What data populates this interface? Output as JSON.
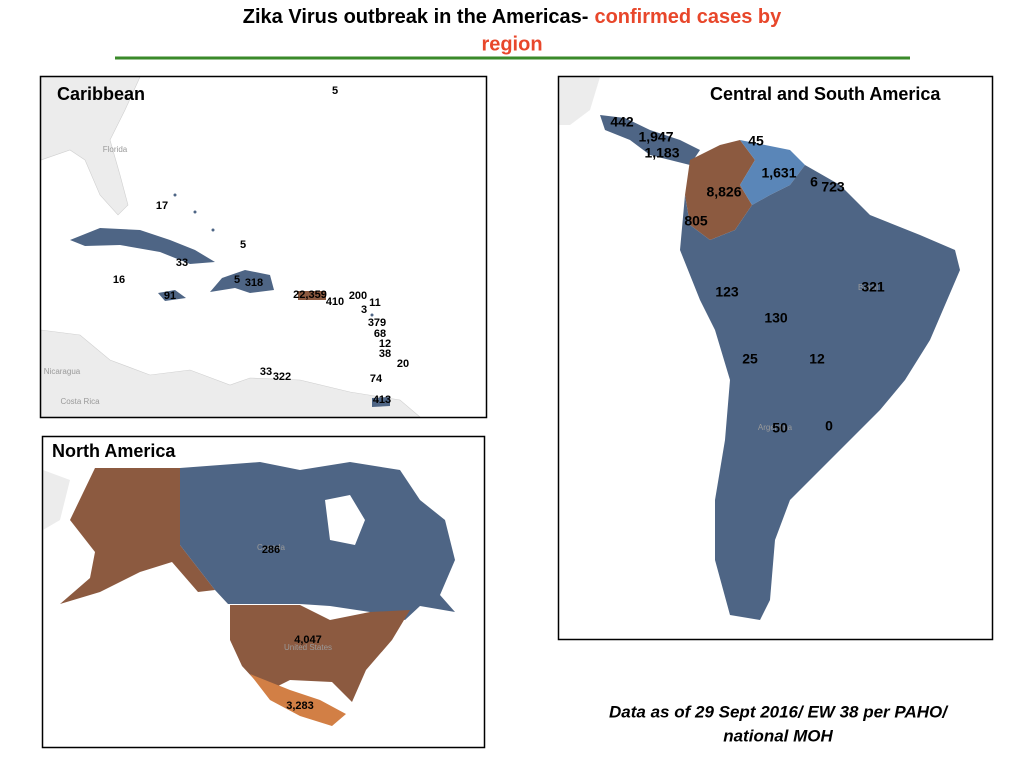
{
  "title": {
    "main": "Zika Virus outbreak in the Americas-",
    "highlight_line1": "confirmed cases by",
    "highlight_line2": "region"
  },
  "caribbean": {
    "title": "Caribbean",
    "base_labels": [
      "Florida",
      "Nicaragua",
      "Costa Rica"
    ],
    "labels": [
      "5",
      "17",
      "5",
      "33",
      "16",
      "5",
      "318",
      "91",
      "22,359",
      "410",
      "200",
      "11",
      "3",
      "379",
      "68",
      "12",
      "38",
      "20",
      "33",
      "322",
      "74",
      "413"
    ]
  },
  "north_america": {
    "title": "North America",
    "base_labels": [
      "Canada",
      "United States"
    ],
    "labels": [
      "286",
      "4,047",
      "3,283"
    ]
  },
  "south_america": {
    "title": "Central and South America",
    "base_labels": [
      "Brazil",
      "Argentina"
    ],
    "labels": [
      "442",
      "1,947",
      "1,183",
      "45",
      "1,631",
      "6",
      "723",
      "8,826",
      "805",
      "321",
      "123",
      "130",
      "25",
      "12",
      "50",
      "0"
    ]
  },
  "footnote": [
    "Data as of 29 Sept 2016/ EW 38 per PAHO/",
    "national MOH"
  ]
}
